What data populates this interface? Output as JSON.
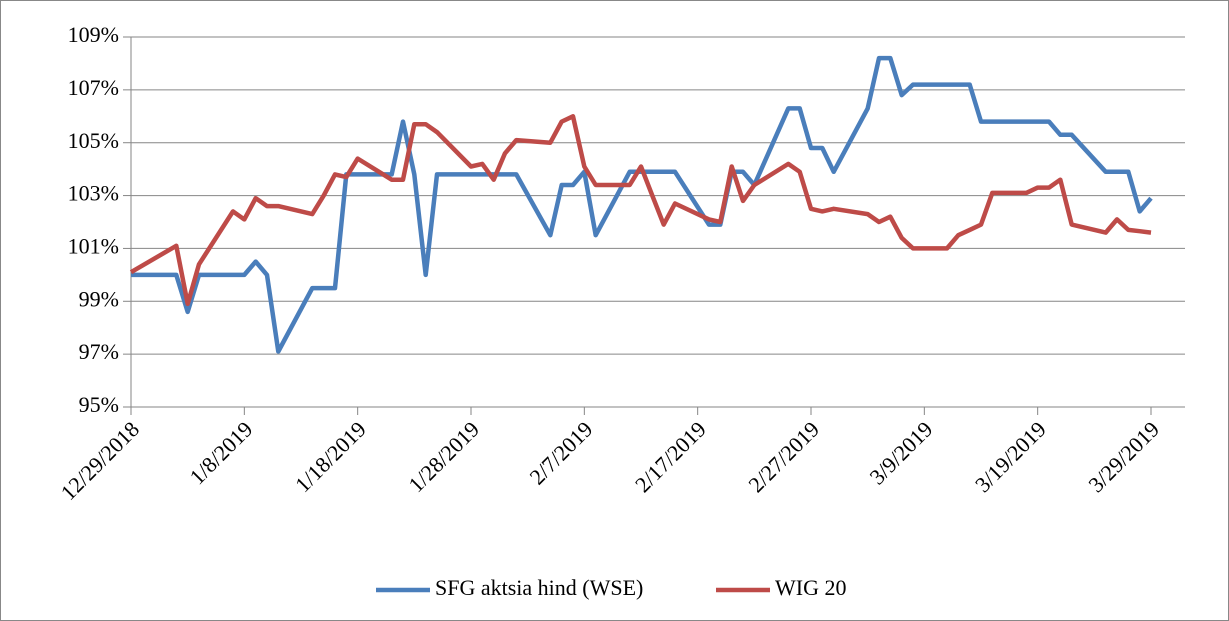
{
  "chart_data": {
    "type": "line",
    "x": [
      "12/29/2018",
      "1/2/2019",
      "1/3/2019",
      "1/4/2019",
      "1/7/2019",
      "1/8/2019",
      "1/9/2019",
      "1/10/2019",
      "1/11/2019",
      "1/14/2019",
      "1/15/2019",
      "1/16/2019",
      "1/17/2019",
      "1/18/2019",
      "1/21/2019",
      "1/22/2019",
      "1/23/2019",
      "1/24/2019",
      "1/25/2019",
      "1/28/2019",
      "1/29/2019",
      "1/30/2019",
      "1/31/2019",
      "2/1/2019",
      "2/4/2019",
      "2/5/2019",
      "2/6/2019",
      "2/7/2019",
      "2/8/2019",
      "2/11/2019",
      "2/12/2019",
      "2/13/2019",
      "2/14/2019",
      "2/15/2019",
      "2/18/2019",
      "2/19/2019",
      "2/20/2019",
      "2/21/2019",
      "2/22/2019",
      "2/25/2019",
      "2/26/2019",
      "2/27/2019",
      "2/28/2019",
      "3/1/2019",
      "3/4/2019",
      "3/5/2019",
      "3/6/2019",
      "3/7/2019",
      "3/8/2019",
      "3/11/2019",
      "3/12/2019",
      "3/13/2019",
      "3/14/2019",
      "3/15/2019",
      "3/18/2019",
      "3/19/2019",
      "3/20/2019",
      "3/21/2019",
      "3/22/2019",
      "3/25/2019",
      "3/26/2019",
      "3/27/2019",
      "3/28/2019",
      "3/29/2019"
    ],
    "series": [
      {
        "name": "SFG aktsia hind (WSE)",
        "color": "#4a7ebb",
        "values": [
          100,
          100,
          98.6,
          100,
          100,
          100,
          100.5,
          100,
          97.1,
          99.5,
          99.5,
          99.5,
          103.8,
          103.8,
          103.8,
          105.8,
          103.8,
          100,
          103.8,
          103.8,
          103.8,
          103.8,
          103.8,
          103.8,
          101.5,
          103.4,
          103.4,
          103.9,
          101.5,
          103.9,
          103.9,
          103.9,
          103.9,
          103.9,
          101.9,
          101.9,
          103.9,
          103.9,
          103.4,
          106.3,
          106.3,
          104.8,
          104.8,
          103.9,
          106.3,
          108.2,
          108.2,
          106.8,
          107.2,
          107.2,
          107.2,
          107.2,
          105.8,
          105.8,
          105.8,
          105.8,
          105.8,
          105.3,
          105.3,
          103.9,
          103.9,
          103.9,
          102.4,
          102.9
        ]
      },
      {
        "name": "WIG 20",
        "color": "#be4b48",
        "values": [
          100.1,
          101.1,
          98.9,
          100.4,
          102.4,
          102.1,
          102.9,
          102.6,
          102.6,
          102.3,
          103.0,
          103.8,
          103.7,
          104.4,
          103.6,
          103.6,
          105.7,
          105.7,
          105.4,
          104.1,
          104.2,
          103.6,
          104.6,
          105.1,
          105.0,
          105.8,
          106.0,
          104.1,
          103.4,
          103.4,
          104.1,
          103.0,
          101.9,
          102.7,
          102.1,
          102.0,
          104.1,
          102.8,
          103.4,
          104.2,
          103.9,
          102.5,
          102.4,
          102.5,
          102.3,
          102.0,
          102.2,
          101.4,
          101.0,
          101.0,
          101.5,
          101.7,
          101.9,
          103.1,
          103.1,
          103.3,
          103.3,
          103.6,
          101.9,
          101.6,
          102.1,
          101.7,
          101.65,
          101.6
        ]
      }
    ],
    "xlim": [
      "12/29/2018",
      "4/1/2019"
    ],
    "xticks": [
      "12/29/2018",
      "1/8/2019",
      "1/18/2019",
      "1/28/2019",
      "2/7/2019",
      "2/17/2019",
      "2/27/2019",
      "3/9/2019",
      "3/19/2019",
      "3/29/2019"
    ],
    "ylim": [
      95,
      109
    ],
    "yticks": [
      {
        "value": 95,
        "label": "95%"
      },
      {
        "value": 97,
        "label": "97%"
      },
      {
        "value": 99,
        "label": "99%"
      },
      {
        "value": 101,
        "label": "101%"
      },
      {
        "value": 103,
        "label": "103%"
      },
      {
        "value": 105,
        "label": "105%"
      },
      {
        "value": 107,
        "label": "107%"
      },
      {
        "value": 109,
        "label": "109%"
      }
    ],
    "grid": true,
    "legend": "bottom"
  }
}
